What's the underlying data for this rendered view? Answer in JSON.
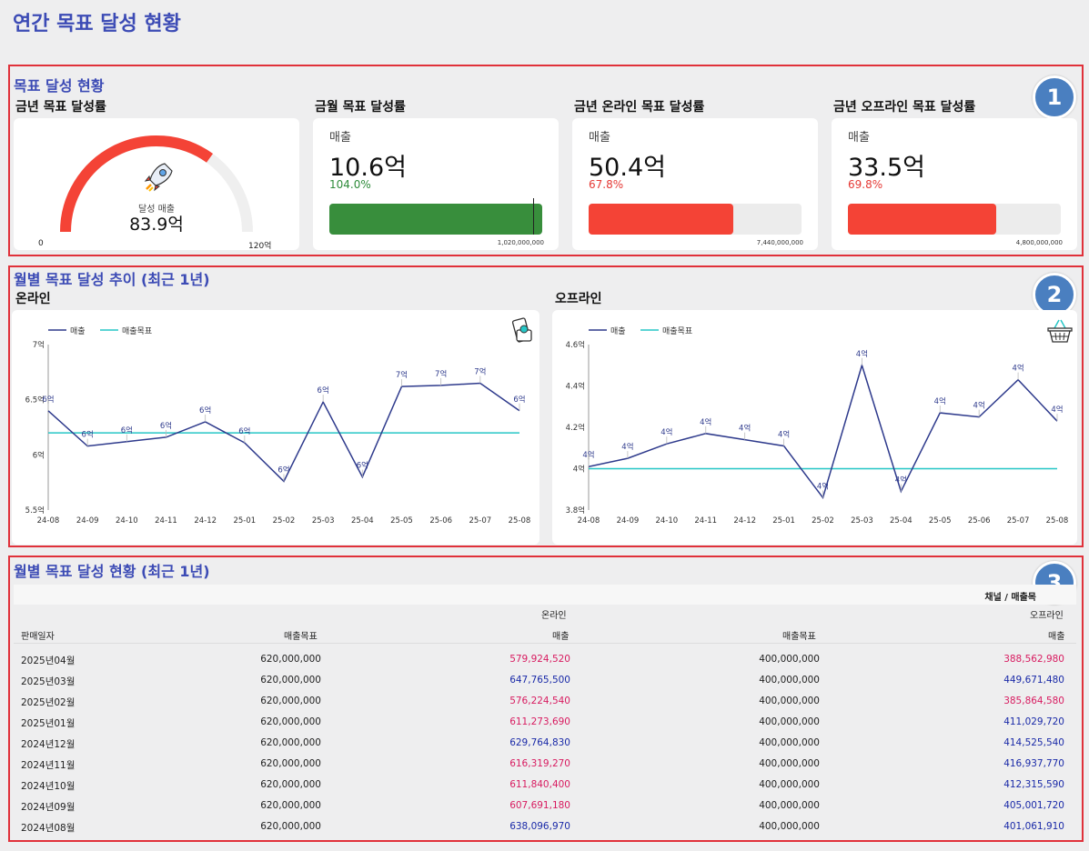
{
  "page_title": "연간 목표 달성 현황",
  "section1": {
    "title": "목표 달성 현황",
    "badge": "1",
    "gauge": {
      "card_title": "금년 목표 달성률",
      "label": "달성 매출",
      "value": "83.9억",
      "min": "0",
      "max": "120억",
      "fraction": 0.699
    },
    "kpis": [
      {
        "card_title": "금월 목표 달성률",
        "label": "매출",
        "value": "10.6억",
        "pct": "104.0%",
        "pct_color": "#2e8b3a",
        "fill": 1.0,
        "bar_color": "#388e3c",
        "max": "1,020,000,000",
        "marker": true
      },
      {
        "card_title": "금년 온라인 목표 달성률",
        "label": "매출",
        "value": "50.4억",
        "pct": "67.8%",
        "pct_color": "#e53935",
        "fill": 0.678,
        "bar_color": "#f44336",
        "max": "7,440,000,000",
        "marker": false
      },
      {
        "card_title": "금년 오프라인 목표 달성률",
        "label": "매출",
        "value": "33.5억",
        "pct": "69.8%",
        "pct_color": "#e53935",
        "fill": 0.698,
        "bar_color": "#f44336",
        "max": "4,800,000,000",
        "marker": false
      }
    ]
  },
  "section2": {
    "title": "월별 목표 달성 추이 (최근 1년)",
    "badge": "2",
    "legend": [
      "매출",
      "매출목표"
    ],
    "colors": {
      "sales": "#2e3a8c",
      "target": "#26c6c6"
    },
    "chart_data": [
      {
        "type": "line",
        "subtitle": "온라인",
        "icon": "mobile-shopping-icon",
        "x": [
          "24-08",
          "24-09",
          "24-10",
          "24-11",
          "24-12",
          "25-01",
          "25-02",
          "25-03",
          "25-04",
          "25-05",
          "25-06",
          "25-07",
          "25-08"
        ],
        "y_ticks": [
          "5.5억",
          "6억",
          "6.5억",
          "7억"
        ],
        "ylim": [
          5.5,
          7.0
        ],
        "series": [
          {
            "name": "매출",
            "values": [
              6.4,
              6.08,
              6.12,
              6.16,
              6.3,
              6.11,
              5.76,
              6.48,
              5.8,
              6.62,
              6.63,
              6.65,
              6.4
            ],
            "labels": [
              "6억",
              "6억",
              "6억",
              "6억",
              "6억",
              "6억",
              "6억",
              "6억",
              "6억",
              "7억",
              "7억",
              "7억",
              "6억"
            ]
          },
          {
            "name": "매출목표",
            "values": [
              6.2,
              6.2,
              6.2,
              6.2,
              6.2,
              6.2,
              6.2,
              6.2,
              6.2,
              6.2,
              6.2,
              6.2,
              6.2
            ]
          }
        ]
      },
      {
        "type": "line",
        "subtitle": "오프라인",
        "icon": "shopping-basket-icon",
        "x": [
          "24-08",
          "24-09",
          "24-10",
          "24-11",
          "24-12",
          "25-01",
          "25-02",
          "25-03",
          "25-04",
          "25-05",
          "25-06",
          "25-07",
          "25-08"
        ],
        "y_ticks": [
          "3.8억",
          "4억",
          "4.2억",
          "4.4억",
          "4.6억"
        ],
        "ylim": [
          3.8,
          4.6
        ],
        "series": [
          {
            "name": "매출",
            "values": [
              4.01,
              4.05,
              4.12,
              4.17,
              4.14,
              4.11,
              3.86,
              4.5,
              3.89,
              4.27,
              4.25,
              4.43,
              4.23
            ],
            "labels": [
              "4억",
              "4억",
              "4억",
              "4억",
              "4억",
              "4억",
              "4억",
              "4억",
              "4억",
              "4억",
              "4억",
              "4억",
              "4억"
            ]
          },
          {
            "name": "매출목표",
            "values": [
              4.0,
              4.0,
              4.0,
              4.0,
              4.0,
              4.0,
              4.0,
              4.0,
              4.0,
              4.0,
              4.0,
              4.0,
              4.0
            ]
          }
        ]
      }
    ]
  },
  "section3": {
    "title": "월별 목표 달성 현황 (최근 1년)",
    "badge": "3",
    "header_group": "채널 / 매출목",
    "channel_online": "온라인",
    "channel_offline": "오프라인",
    "col_date": "판매일자",
    "col_target": "매출목표",
    "col_sales": "매출",
    "col_target2": "매출목표",
    "col_sales2": "매출",
    "rows": [
      {
        "date": "2025년04월",
        "on_target": "620,000,000",
        "on_sales": "579,924,520",
        "on_color": "#d81b60",
        "off_target": "400,000,000",
        "off_sales": "388,562,980",
        "off_color": "#d81b60"
      },
      {
        "date": "2025년03월",
        "on_target": "620,000,000",
        "on_sales": "647,765,500",
        "on_color": "#1a2aa8",
        "off_target": "400,000,000",
        "off_sales": "449,671,480",
        "off_color": "#1a2aa8"
      },
      {
        "date": "2025년02월",
        "on_target": "620,000,000",
        "on_sales": "576,224,540",
        "on_color": "#d81b60",
        "off_target": "400,000,000",
        "off_sales": "385,864,580",
        "off_color": "#d81b60"
      },
      {
        "date": "2025년01월",
        "on_target": "620,000,000",
        "on_sales": "611,273,690",
        "on_color": "#d81b60",
        "off_target": "400,000,000",
        "off_sales": "411,029,720",
        "off_color": "#1a2aa8"
      },
      {
        "date": "2024년12월",
        "on_target": "620,000,000",
        "on_sales": "629,764,830",
        "on_color": "#1a2aa8",
        "off_target": "400,000,000",
        "off_sales": "414,525,540",
        "off_color": "#1a2aa8"
      },
      {
        "date": "2024년11월",
        "on_target": "620,000,000",
        "on_sales": "616,319,270",
        "on_color": "#d81b60",
        "off_target": "400,000,000",
        "off_sales": "416,937,770",
        "off_color": "#1a2aa8"
      },
      {
        "date": "2024년10월",
        "on_target": "620,000,000",
        "on_sales": "611,840,400",
        "on_color": "#d81b60",
        "off_target": "400,000,000",
        "off_sales": "412,315,590",
        "off_color": "#1a2aa8"
      },
      {
        "date": "2024년09월",
        "on_target": "620,000,000",
        "on_sales": "607,691,180",
        "on_color": "#d81b60",
        "off_target": "400,000,000",
        "off_sales": "405,001,720",
        "off_color": "#1a2aa8"
      },
      {
        "date": "2024년08월",
        "on_target": "620,000,000",
        "on_sales": "638,096,970",
        "on_color": "#1a2aa8",
        "off_target": "400,000,000",
        "off_sales": "401,061,910",
        "off_color": "#1a2aa8"
      }
    ]
  }
}
